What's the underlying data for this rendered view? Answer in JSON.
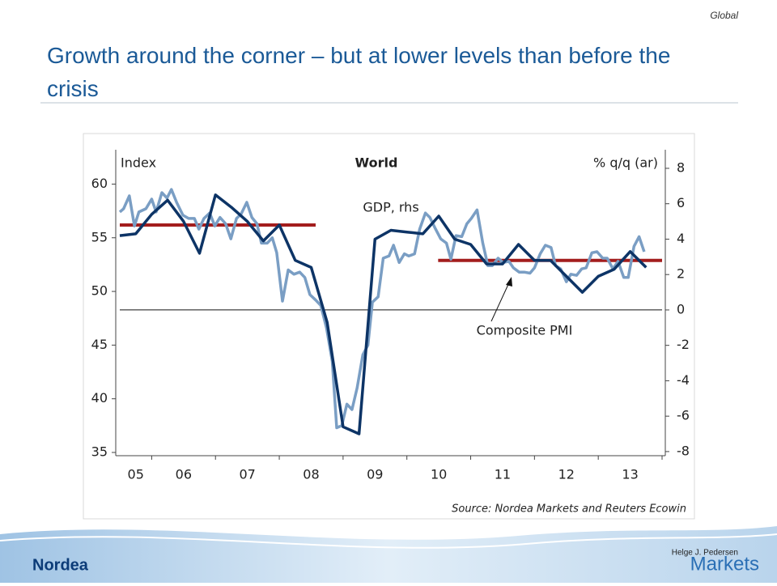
{
  "header": {
    "title": "Growth around the corner – but at lower levels than before the crisis",
    "section": "Global"
  },
  "chart_data": {
    "type": "line",
    "title": "World",
    "y_label": "Index",
    "y2_label": "% q/q (ar)",
    "source": "Source: Nordea Markets and Reuters Ecowin",
    "xlim": [
      2005.5,
      2014.0
    ],
    "xticks": [
      {
        "value": 2005.75,
        "label": "05"
      },
      {
        "value": 2006.5,
        "label": "06"
      },
      {
        "value": 2007.5,
        "label": "07"
      },
      {
        "value": 2008.5,
        "label": "08"
      },
      {
        "value": 2009.5,
        "label": "09"
      },
      {
        "value": 2010.5,
        "label": "10"
      },
      {
        "value": 2011.5,
        "label": "11"
      },
      {
        "value": 2012.5,
        "label": "12"
      },
      {
        "value": 2013.5,
        "label": "13"
      }
    ],
    "xtick_marks": [
      2006,
      2007,
      2008,
      2009,
      2010,
      2011,
      2012,
      2013,
      2014
    ],
    "ylim": [
      35,
      63.2
    ],
    "yticks": [
      35,
      40,
      45,
      50,
      55,
      60
    ],
    "y2lim": [
      -8.05,
      9.05
    ],
    "y2ticks": [
      -8,
      -6,
      -4,
      -2,
      0,
      2,
      4,
      6,
      8
    ],
    "zero_line": true,
    "series": [
      {
        "name": "GDP, rhs",
        "color": "#0d3466",
        "axis": "y2",
        "x": [
          2005.5,
          2005.75,
          2006.0,
          2006.25,
          2006.5,
          2006.75,
          2007.0,
          2007.25,
          2007.5,
          2007.75,
          2008.0,
          2008.25,
          2008.5,
          2008.75,
          2009.0,
          2009.25,
          2009.5,
          2009.75,
          2010.0,
          2010.25,
          2010.5,
          2010.75,
          2011.0,
          2011.25,
          2011.5,
          2011.75,
          2012.0,
          2012.25,
          2012.5,
          2012.75,
          2013.0,
          2013.25,
          2013.5,
          2013.75
        ],
        "values": [
          4.2,
          4.3,
          5.4,
          6.2,
          5.0,
          3.2,
          6.5,
          5.8,
          5.0,
          3.9,
          4.8,
          2.8,
          2.4,
          -0.7,
          -6.6,
          -7.0,
          4.0,
          4.5,
          4.4,
          4.3,
          5.3,
          4.0,
          3.7,
          2.6,
          2.6,
          3.7,
          2.8,
          2.8,
          1.9,
          1.0,
          1.9,
          2.3,
          3.3,
          2.4
        ]
      },
      {
        "name": "Composite PMI",
        "color": "#7a9ec4",
        "x": [
          2005.5,
          2005.56,
          2005.65,
          2005.73,
          2005.8,
          2005.91,
          2006.0,
          2006.07,
          2006.16,
          2006.24,
          2006.31,
          2006.39,
          2006.49,
          2006.58,
          2006.67,
          2006.74,
          2006.82,
          2006.91,
          2006.99,
          2007.07,
          2007.16,
          2007.24,
          2007.33,
          2007.4,
          2007.49,
          2007.57,
          2007.65,
          2007.72,
          2007.81,
          2007.89,
          2007.96,
          2008.05,
          2008.14,
          2008.23,
          2008.32,
          2008.4,
          2008.48,
          2008.57,
          2008.65,
          2008.74,
          2008.83,
          2008.9,
          2008.98,
          2009.06,
          2009.14,
          2009.22,
          2009.31,
          2009.39,
          2009.46,
          2009.55,
          2009.63,
          2009.72,
          2009.79,
          2009.88,
          2009.96,
          2010.03,
          2010.12,
          2010.2,
          2010.29,
          2010.36,
          2010.45,
          2010.53,
          2010.62,
          2010.69,
          2010.77,
          2010.86,
          2010.94,
          2011.01,
          2011.1,
          2011.19,
          2011.27,
          2011.34,
          2011.43,
          2011.51,
          2011.6,
          2011.67,
          2011.76,
          2011.84,
          2011.93,
          2012.0,
          2012.09,
          2012.17,
          2012.26,
          2012.33,
          2012.41,
          2012.5,
          2012.57,
          2012.66,
          2012.74,
          2012.81,
          2012.9,
          2012.98,
          2013.07,
          2013.14,
          2013.23,
          2013.31,
          2013.4,
          2013.47,
          2013.56,
          2013.64,
          2013.72
        ],
        "values": [
          57.4,
          57.7,
          58.9,
          56.1,
          57.4,
          57.7,
          58.6,
          57.4,
          59.2,
          58.7,
          59.5,
          58.3,
          57.1,
          56.8,
          56.8,
          55.8,
          56.8,
          57.3,
          56.1,
          56.9,
          56.3,
          54.9,
          56.8,
          57.2,
          58.3,
          56.9,
          56.3,
          54.5,
          54.5,
          55.0,
          53.6,
          49.1,
          52.0,
          51.6,
          51.8,
          51.3,
          49.7,
          49.2,
          48.7,
          46.6,
          43.5,
          37.3,
          37.5,
          39.5,
          39.0,
          41.0,
          44.1,
          45.0,
          49.0,
          49.5,
          53.1,
          53.3,
          54.3,
          52.7,
          53.5,
          53.3,
          53.5,
          55.8,
          57.3,
          56.9,
          55.8,
          54.9,
          54.5,
          53.0,
          55.2,
          55.1,
          56.3,
          56.8,
          57.6,
          54.5,
          52.4,
          52.4,
          53.1,
          52.7,
          52.8,
          52.2,
          51.8,
          51.8,
          51.7,
          52.2,
          53.5,
          54.3,
          54.1,
          52.4,
          52.1,
          50.9,
          51.6,
          51.5,
          52.1,
          52.2,
          53.6,
          53.7,
          53.1,
          53.1,
          52.1,
          52.8,
          51.3,
          51.3,
          54.2,
          55.1,
          53.7
        ]
      }
    ],
    "reference_lines": [
      {
        "axis": "y2",
        "value": 4.8,
        "x": [
          2005.5,
          2008.57
        ],
        "color": "#a31d1d"
      },
      {
        "axis": "y2",
        "value": 2.8,
        "x": [
          2010.49,
          2014.0
        ],
        "color": "#a31d1d"
      }
    ]
  },
  "footer": {
    "author": "Helge J. Pedersen",
    "brand": "Markets",
    "logo": "Nordea"
  }
}
